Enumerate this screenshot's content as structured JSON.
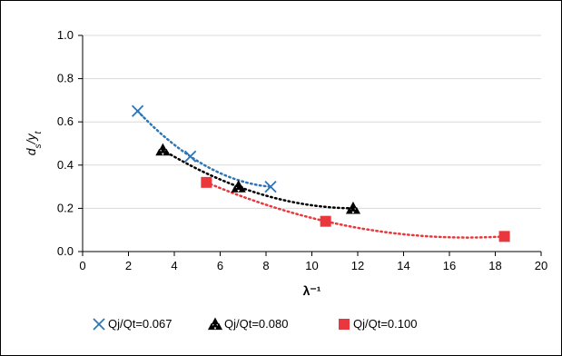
{
  "chart_data": {
    "type": "scatter",
    "title": "",
    "xlabel": "λ⁻¹",
    "ylabel": "d_s/y_t",
    "xlim": [
      0,
      20
    ],
    "ylim": [
      0,
      1.0
    ],
    "xticks": [
      "0",
      "2",
      "4",
      "6",
      "8",
      "10",
      "12",
      "14",
      "16",
      "18",
      "20"
    ],
    "yticks": [
      "0.0",
      "0.2",
      "0.4",
      "0.6",
      "0.8",
      "1.0"
    ],
    "grid": "horizontal",
    "legend": "bottom",
    "trendline": "polynomial, dotted",
    "series": [
      {
        "name": "Qj/Qt=0.067",
        "marker": "x",
        "color": "#2E75B6",
        "trend_color": "#2E75B6",
        "points": [
          [
            2.4,
            0.65
          ],
          [
            4.7,
            0.44
          ],
          [
            8.2,
            0.3
          ]
        ]
      },
      {
        "name": "Qj/Qt=0.080",
        "marker": "triangle-cluster",
        "color": "#000000",
        "trend_color": "#000000",
        "points": [
          [
            3.5,
            0.47
          ],
          [
            6.8,
            0.3
          ],
          [
            11.8,
            0.2
          ]
        ]
      },
      {
        "name": "Qj/Qt=0.100",
        "marker": "square",
        "color": "#E8383D",
        "trend_color": "#E8383D",
        "points": [
          [
            5.4,
            0.32
          ],
          [
            10.6,
            0.14
          ],
          [
            18.4,
            0.07
          ]
        ]
      }
    ]
  }
}
